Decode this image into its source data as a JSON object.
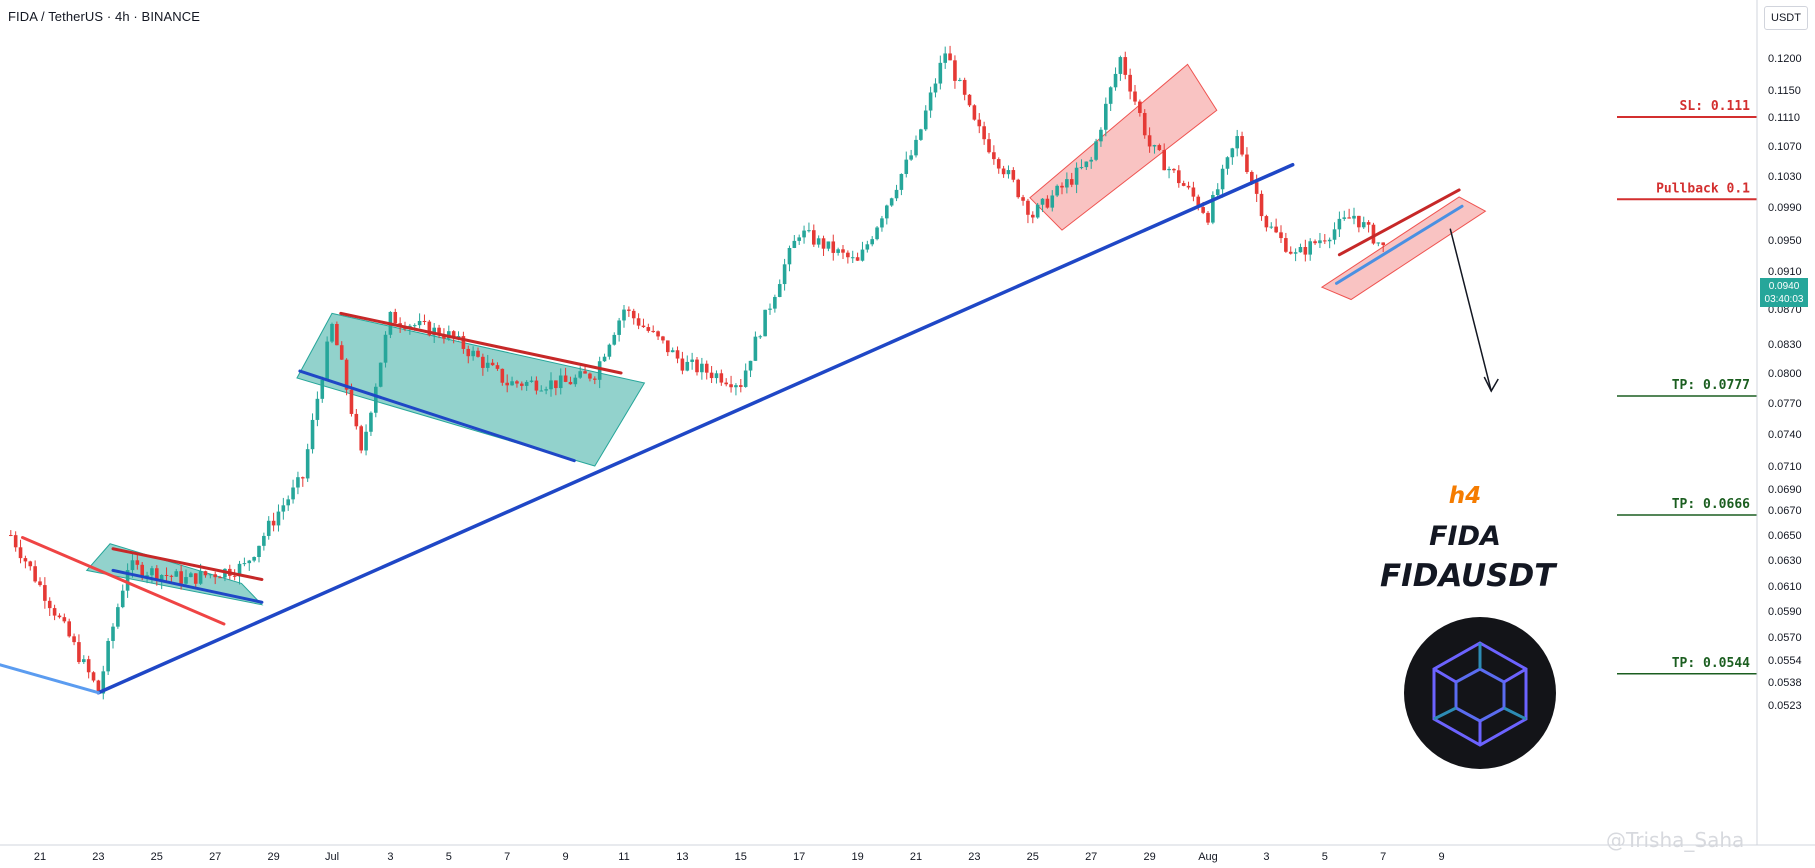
{
  "header": {
    "title": "FIDA / TetherUS · 4h · BINANCE"
  },
  "currency_button": "USDT",
  "current_price": {
    "price": "0.0940",
    "countdown": "03:40:03"
  },
  "watermark": "@Trisha_Saha",
  "overlay": {
    "timeframe": "h4",
    "name": "FIDA",
    "pair": "FIDAUSDT"
  },
  "colors": {
    "up": "#26a69a",
    "down": "#e53935",
    "support": "#1f47c6",
    "stop_loss": "#d32f2f",
    "take_profit": "#1b5e20",
    "accent": "#f57c00"
  },
  "levels": [
    {
      "label": "SL: 0.111",
      "price": 0.111,
      "kind": "sl"
    },
    {
      "label": "Pullback 0.1",
      "price": 0.1,
      "kind": "pullback"
    },
    {
      "label": "TP: 0.0777",
      "price": 0.0777,
      "kind": "tp"
    },
    {
      "label": "TP: 0.0666",
      "price": 0.0666,
      "kind": "tp"
    },
    {
      "label": "TP: 0.0544",
      "price": 0.0544,
      "kind": "tp"
    }
  ],
  "chart_data": {
    "type": "candlestick",
    "title": "FIDA / TetherUS · 4h · BINANCE",
    "ylabel": "USDT",
    "y_ticks": [
      "0.1200",
      "0.1150",
      "0.1110",
      "0.1070",
      "0.1030",
      "0.0990",
      "0.0950",
      "0.0910",
      "0.0870",
      "0.0830",
      "0.0800",
      "0.0770",
      "0.0740",
      "0.0710",
      "0.0690",
      "0.0670",
      "0.0650",
      "0.0630",
      "0.0610",
      "0.0590",
      "0.0570",
      "0.0554",
      "0.0538",
      "0.0523"
    ],
    "x_ticks": [
      "21",
      "23",
      "25",
      "27",
      "29",
      "Jul",
      "3",
      "5",
      "7",
      "9",
      "11",
      "13",
      "15",
      "17",
      "19",
      "21",
      "23",
      "25",
      "27",
      "29",
      "Aug",
      "3",
      "5",
      "7",
      "9"
    ],
    "price_path_approx": [
      [
        "Jun 20",
        0.065
      ],
      [
        "Jun 22",
        0.057
      ],
      [
        "Jun 23",
        0.0531
      ],
      [
        "Jun 24",
        0.0625
      ],
      [
        "Jun 26",
        0.0615
      ],
      [
        "Jun 28",
        0.0625
      ],
      [
        "Jun 30",
        0.07
      ],
      [
        "Jul 1",
        0.085
      ],
      [
        "Jul 2",
        0.072
      ],
      [
        "Jul 3",
        0.086
      ],
      [
        "Jul 5",
        0.084
      ],
      [
        "Jul 7",
        0.079
      ],
      [
        "Jul 9",
        0.079
      ],
      [
        "Jul 10",
        0.08
      ],
      [
        "Jul 11",
        0.087
      ],
      [
        "Jul 13",
        0.081
      ],
      [
        "Jul 15",
        0.079
      ],
      [
        "Jul 17",
        0.096
      ],
      [
        "Jul 19",
        0.092
      ],
      [
        "Jul 21",
        0.107
      ],
      [
        "Jul 22",
        0.121
      ],
      [
        "Jul 23",
        0.11
      ],
      [
        "Jul 25",
        0.098
      ],
      [
        "Jul 27",
        0.105
      ],
      [
        "Jul 28",
        0.12
      ],
      [
        "Jul 29",
        0.107
      ],
      [
        "Jul 31",
        0.098
      ],
      [
        "Aug 1",
        0.108
      ],
      [
        "Aug 2",
        0.097
      ],
      [
        "Aug 3",
        0.093
      ],
      [
        "Aug 5",
        0.098
      ],
      [
        "Aug 6",
        0.094
      ]
    ],
    "annotations": {
      "support_trendline": "rising from Jun 23 low to early August",
      "channels": [
        "bull flag Jun 24-28",
        "bull flag Jul 2-10",
        "rising channel Jul 24-29",
        "rising channel Aug 2-6"
      ],
      "target_arrow": "from 0.0990 down to 0.0777"
    },
    "grid": false,
    "legend": "none"
  }
}
